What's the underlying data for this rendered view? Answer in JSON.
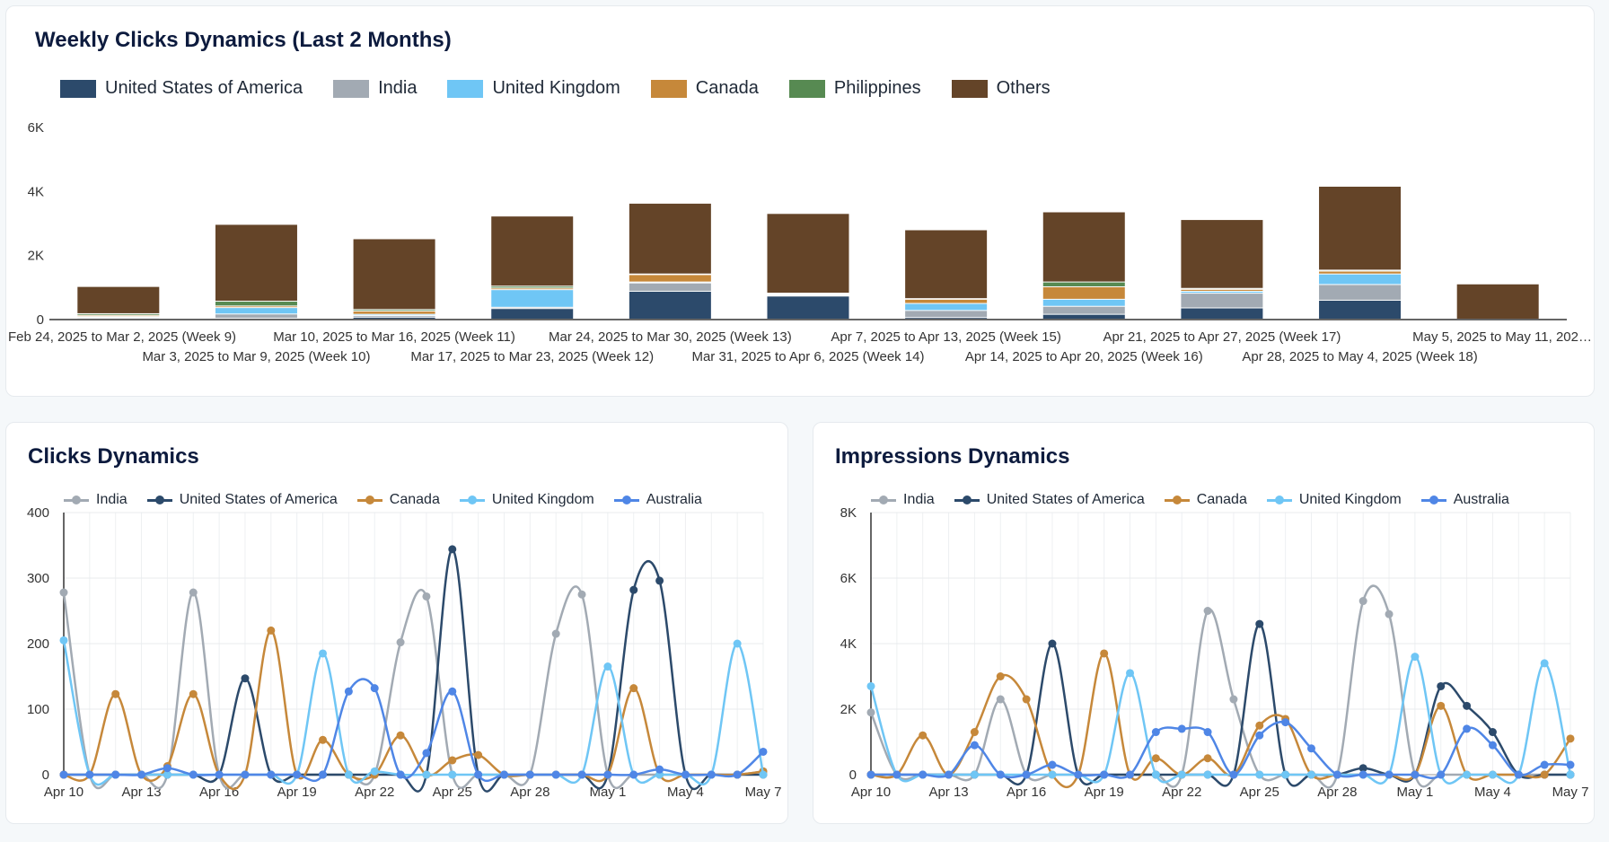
{
  "top_chart": {
    "title": "Weekly Clicks Dynamics (Last 2 Months)",
    "chart_data": {
      "type": "bar",
      "stacked": true,
      "title": "Weekly Clicks Dynamics (Last 2 Months)",
      "ylim": [
        0,
        6000
      ],
      "yticks": [
        {
          "v": 0,
          "label": "0"
        },
        {
          "v": 2000,
          "label": "2K"
        },
        {
          "v": 4000,
          "label": "4K"
        },
        {
          "v": 6000,
          "label": "6K"
        }
      ],
      "categories": [
        "Feb 24, 2025 to Mar 2, 2025 (Week 9)",
        "Mar 3, 2025 to Mar 9, 2025 (Week 10)",
        "Mar 10, 2025 to Mar 16, 2025 (Week 11)",
        "Mar 17, 2025 to Mar 23, 2025 (Week 12)",
        "Mar 24, 2025 to Mar 30, 2025 (Week 13)",
        "Mar 31, 2025 to Apr 6, 2025 (Week 14)",
        "Apr 7, 2025 to Apr 13, 2025 (Week 15)",
        "Apr 14, 2025 to Apr 20, 2025 (Week 16)",
        "Apr 21, 2025 to Apr 27, 2025 (Week 17)",
        "Apr 28, 2025 to May 4, 2025 (Week 18)",
        "May 5, 2025 to May 11, 202…"
      ],
      "series": [
        {
          "name": "United States of America",
          "color": "#2c4a6b",
          "values": [
            30,
            30,
            60,
            330,
            870,
            720,
            50,
            150,
            350,
            590,
            0
          ]
        },
        {
          "name": "India",
          "color": "#a2aab3",
          "values": [
            20,
            130,
            50,
            40,
            260,
            20,
            220,
            250,
            460,
            490,
            0
          ]
        },
        {
          "name": "United Kingdom",
          "color": "#6fc6f5",
          "values": [
            30,
            200,
            40,
            550,
            30,
            30,
            220,
            220,
            60,
            330,
            0
          ]
        },
        {
          "name": "Canada",
          "color": "#c6883a",
          "values": [
            40,
            50,
            100,
            50,
            230,
            20,
            130,
            390,
            60,
            90,
            0
          ]
        },
        {
          "name": "Philippines",
          "color": "#578a52",
          "values": [
            50,
            150,
            50,
            60,
            20,
            20,
            20,
            150,
            30,
            30,
            0
          ]
        },
        {
          "name": "Others",
          "color": "#644428",
          "values": [
            850,
            2400,
            2210,
            2190,
            2210,
            2490,
            2150,
            2190,
            2150,
            2620,
            1100
          ]
        }
      ]
    }
  },
  "clicks_chart": {
    "title": "Clicks Dynamics",
    "chart_data": {
      "type": "line",
      "title": "Clicks Dynamics",
      "ylim": [
        0,
        400
      ],
      "yticks": [
        {
          "v": 0,
          "label": "0"
        },
        {
          "v": 100,
          "label": "100"
        },
        {
          "v": 200,
          "label": "200"
        },
        {
          "v": 300,
          "label": "300"
        },
        {
          "v": 400,
          "label": "400"
        }
      ],
      "xticks": [
        {
          "i": 0,
          "label": "Apr 10"
        },
        {
          "i": 3,
          "label": "Apr 13"
        },
        {
          "i": 6,
          "label": "Apr 16"
        },
        {
          "i": 9,
          "label": "Apr 19"
        },
        {
          "i": 12,
          "label": "Apr 22"
        },
        {
          "i": 15,
          "label": "Apr 25"
        },
        {
          "i": 18,
          "label": "Apr 28"
        },
        {
          "i": 21,
          "label": "May 1"
        },
        {
          "i": 24,
          "label": "May 4"
        },
        {
          "i": 27,
          "label": "May 7"
        }
      ],
      "series": [
        {
          "name": "India",
          "color": "#a2aab3",
          "values": [
            278,
            0,
            0,
            0,
            0,
            278,
            0,
            0,
            0,
            0,
            0,
            0,
            0,
            202,
            272,
            0,
            0,
            0,
            0,
            215,
            275,
            0,
            0,
            0,
            0,
            0,
            0,
            5
          ]
        },
        {
          "name": "United States of America",
          "color": "#2c4a6b",
          "values": [
            0,
            0,
            0,
            0,
            0,
            0,
            0,
            147,
            0,
            0,
            0,
            0,
            0,
            0,
            0,
            344,
            0,
            0,
            0,
            0,
            0,
            0,
            282,
            296,
            0,
            0,
            0,
            0
          ]
        },
        {
          "name": "Canada",
          "color": "#c6883a",
          "values": [
            0,
            0,
            123,
            0,
            13,
            123,
            0,
            0,
            220,
            0,
            53,
            0,
            0,
            60,
            0,
            22,
            30,
            0,
            0,
            0,
            0,
            0,
            132,
            0,
            0,
            0,
            0,
            5
          ]
        },
        {
          "name": "United Kingdom",
          "color": "#6fc6f5",
          "values": [
            205,
            0,
            0,
            0,
            0,
            0,
            0,
            0,
            0,
            0,
            185,
            0,
            5,
            0,
            0,
            0,
            0,
            0,
            0,
            0,
            0,
            165,
            0,
            0,
            0,
            0,
            200,
            0
          ]
        },
        {
          "name": "Australia",
          "color": "#4f86e6",
          "values": [
            0,
            0,
            0,
            0,
            10,
            0,
            0,
            0,
            0,
            0,
            0,
            127,
            132,
            0,
            33,
            127,
            0,
            0,
            0,
            0,
            0,
            0,
            0,
            8,
            0,
            0,
            0,
            35
          ]
        }
      ]
    }
  },
  "impressions_chart": {
    "title": "Impressions Dynamics",
    "chart_data": {
      "type": "line",
      "title": "Impressions Dynamics",
      "ylim": [
        0,
        8000
      ],
      "yticks": [
        {
          "v": 0,
          "label": "0"
        },
        {
          "v": 2000,
          "label": "2K"
        },
        {
          "v": 4000,
          "label": "4K"
        },
        {
          "v": 6000,
          "label": "6K"
        },
        {
          "v": 8000,
          "label": "8K"
        }
      ],
      "xticks": [
        {
          "i": 0,
          "label": "Apr 10"
        },
        {
          "i": 3,
          "label": "Apr 13"
        },
        {
          "i": 6,
          "label": "Apr 16"
        },
        {
          "i": 9,
          "label": "Apr 19"
        },
        {
          "i": 12,
          "label": "Apr 22"
        },
        {
          "i": 15,
          "label": "Apr 25"
        },
        {
          "i": 18,
          "label": "Apr 28"
        },
        {
          "i": 21,
          "label": "May 1"
        },
        {
          "i": 24,
          "label": "May 4"
        },
        {
          "i": 27,
          "label": "May 7"
        }
      ],
      "series": [
        {
          "name": "India",
          "color": "#a2aab3",
          "values": [
            1900,
            0,
            0,
            0,
            0,
            2300,
            0,
            0,
            0,
            0,
            0,
            0,
            0,
            5000,
            2300,
            0,
            0,
            0,
            0,
            5300,
            4900,
            0,
            0,
            0,
            0,
            0,
            0,
            0
          ]
        },
        {
          "name": "United States of America",
          "color": "#2c4a6b",
          "values": [
            0,
            0,
            0,
            0,
            0,
            0,
            0,
            4000,
            0,
            0,
            0,
            0,
            0,
            0,
            0,
            4600,
            0,
            0,
            0,
            200,
            0,
            0,
            2700,
            2100,
            1300,
            0,
            0,
            0
          ]
        },
        {
          "name": "Canada",
          "color": "#c6883a",
          "values": [
            0,
            0,
            1200,
            0,
            1300,
            3000,
            2300,
            0,
            0,
            3700,
            0,
            500,
            0,
            500,
            0,
            1500,
            1700,
            0,
            0,
            0,
            0,
            0,
            2100,
            0,
            0,
            0,
            0,
            1100
          ]
        },
        {
          "name": "United Kingdom",
          "color": "#6fc6f5",
          "values": [
            2700,
            0,
            0,
            0,
            0,
            0,
            0,
            0,
            0,
            0,
            3100,
            0,
            0,
            0,
            0,
            0,
            0,
            0,
            0,
            0,
            0,
            3600,
            0,
            0,
            0,
            0,
            3400,
            0
          ]
        },
        {
          "name": "Australia",
          "color": "#4f86e6",
          "values": [
            0,
            0,
            0,
            0,
            900,
            0,
            0,
            300,
            0,
            0,
            0,
            1300,
            1400,
            1300,
            0,
            1200,
            1600,
            800,
            0,
            0,
            0,
            0,
            0,
            1400,
            900,
            0,
            300,
            300
          ]
        }
      ]
    }
  }
}
